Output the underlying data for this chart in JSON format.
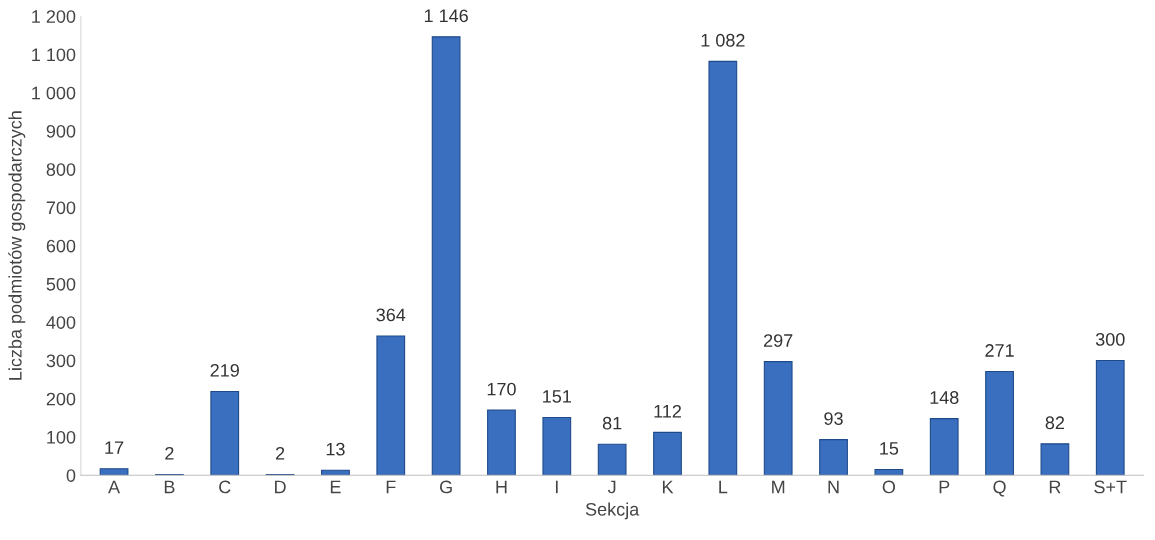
{
  "chart_data": {
    "type": "bar",
    "xlabel": "Sekcja",
    "ylabel": "Liczba podmiotów gospodarczych",
    "categories": [
      "A",
      "B",
      "C",
      "D",
      "E",
      "F",
      "G",
      "H",
      "I",
      "J",
      "K",
      "L",
      "M",
      "N",
      "O",
      "P",
      "Q",
      "R",
      "S+T"
    ],
    "values": [
      17,
      2,
      219,
      2,
      13,
      364,
      1146,
      170,
      151,
      81,
      112,
      1082,
      297,
      93,
      15,
      148,
      271,
      82,
      300
    ],
    "value_labels": [
      "17",
      "2",
      "219",
      "2",
      "13",
      "364",
      "1 146",
      "170",
      "151",
      "81",
      "112",
      "1 082",
      "297",
      "93",
      "15",
      "148",
      "271",
      "82",
      "300"
    ],
    "color": "#3a6fc0",
    "ylim": [
      0,
      1200
    ],
    "yticks": [
      0,
      100,
      200,
      300,
      400,
      500,
      600,
      700,
      800,
      900,
      {
        "value": 1000,
        "label": "1 000"
      },
      {
        "value": 1100,
        "label": "1 100"
      },
      {
        "value": 1200,
        "label": "1 200"
      }
    ],
    "grid": false,
    "legend": false
  }
}
